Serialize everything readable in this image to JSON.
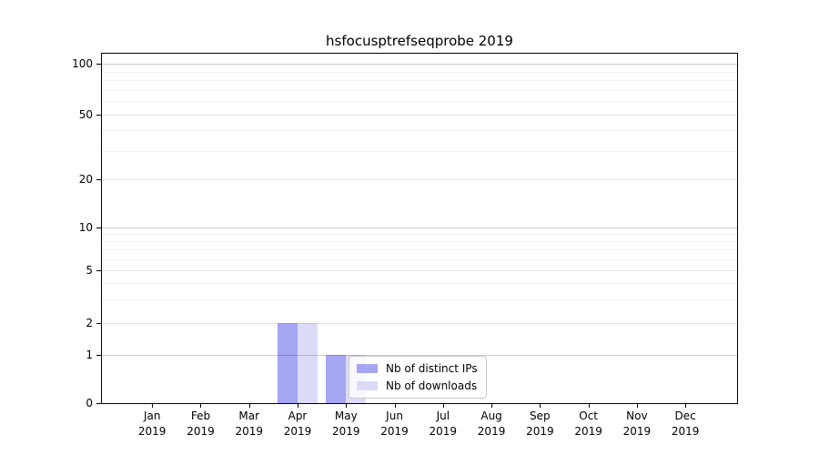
{
  "chart_data": {
    "type": "bar",
    "title": "hsfocusptrefseqprobe 2019",
    "categories": [
      {
        "month": "Jan",
        "year": "2019"
      },
      {
        "month": "Feb",
        "year": "2019"
      },
      {
        "month": "Mar",
        "year": "2019"
      },
      {
        "month": "Apr",
        "year": "2019"
      },
      {
        "month": "May",
        "year": "2019"
      },
      {
        "month": "Jun",
        "year": "2019"
      },
      {
        "month": "Jul",
        "year": "2019"
      },
      {
        "month": "Aug",
        "year": "2019"
      },
      {
        "month": "Sep",
        "year": "2019"
      },
      {
        "month": "Oct",
        "year": "2019"
      },
      {
        "month": "Nov",
        "year": "2019"
      },
      {
        "month": "Dec",
        "year": "2019"
      }
    ],
    "series": [
      {
        "name": "Nb of distinct IPs",
        "color": "#a5a5f2",
        "values": [
          0,
          0,
          0,
          2,
          1,
          0,
          0,
          0,
          0,
          0,
          0,
          0
        ]
      },
      {
        "name": "Nb of downloads",
        "color": "#dbdbf8",
        "values": [
          0,
          0,
          0,
          2,
          1,
          0,
          0,
          0,
          0,
          0,
          0,
          0
        ]
      }
    ],
    "yticks": [
      0,
      1,
      2,
      5,
      10,
      20,
      50,
      100
    ],
    "ylim": [
      0,
      115
    ],
    "xlabel": "",
    "ylabel": "",
    "scale": "symlog",
    "grid": true,
    "legend_position": "lower-center"
  }
}
